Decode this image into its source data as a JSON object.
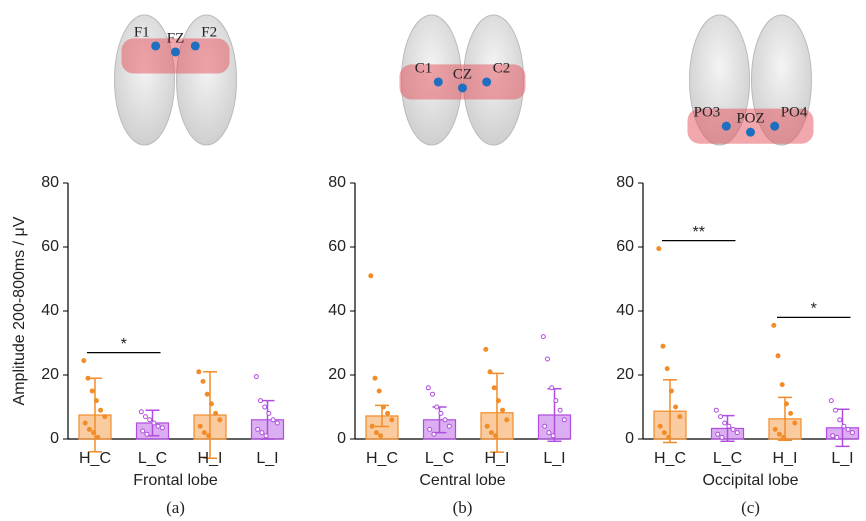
{
  "chart_data": [
    {
      "type": "bar",
      "xlabel": "Frontal lobe",
      "caption": "(a)",
      "ylabel": "Amplitude 200-800ms / μV",
      "categories": [
        "H_C",
        "L_C",
        "H_I",
        "L_I"
      ],
      "values": [
        7.5,
        5,
        7.5,
        6
      ],
      "errors": [
        11.5,
        4,
        13.5,
        6
      ],
      "colors": [
        "#f28c28",
        "#b04ce0",
        "#f28c28",
        "#b04ce0"
      ],
      "points": [
        [
          24.5,
          19,
          15,
          12,
          9,
          7,
          5,
          3,
          2,
          0.5
        ],
        [
          8.5,
          7,
          6,
          5,
          4,
          3.5,
          2.5,
          1.5
        ],
        [
          21,
          18,
          14,
          11,
          8,
          6,
          4,
          2,
          1
        ],
        [
          19.5,
          12,
          10,
          8,
          6,
          5,
          3,
          2,
          1
        ]
      ],
      "electrodes": [
        "F1",
        "FZ",
        "F2"
      ],
      "significance": [
        {
          "label": "*",
          "from": 0,
          "to": 1
        }
      ],
      "ylim": [
        0,
        80
      ],
      "yticks": [
        0,
        20,
        40,
        60,
        80
      ]
    },
    {
      "type": "bar",
      "xlabel": "Central lobe",
      "caption": "(b)",
      "categories": [
        "H_C",
        "L_C",
        "H_I",
        "L_I"
      ],
      "values": [
        7.2,
        6,
        8.2,
        7.5
      ],
      "errors": [
        3.3,
        4,
        12.3,
        8.2
      ],
      "colors": [
        "#f28c28",
        "#b04ce0",
        "#f28c28",
        "#b04ce0"
      ],
      "points": [
        [
          51,
          19,
          15,
          10,
          8,
          6,
          4,
          2,
          1
        ],
        [
          16,
          14,
          10,
          8,
          6,
          4,
          3,
          1.5
        ],
        [
          28,
          21,
          16,
          12,
          9,
          6,
          4,
          2,
          1
        ],
        [
          32,
          25,
          16,
          12,
          9,
          6,
          4,
          2,
          1
        ]
      ],
      "electrodes": [
        "C1",
        "CZ",
        "C2"
      ],
      "significance": [],
      "ylim": [
        0,
        80
      ],
      "yticks": [
        0,
        20,
        40,
        60,
        80
      ]
    },
    {
      "type": "bar",
      "xlabel": "Occipital lobe",
      "caption": "(c)",
      "categories": [
        "H_C",
        "L_C",
        "H_I",
        "L_I"
      ],
      "values": [
        8.7,
        3.3,
        6.3,
        3.5
      ],
      "errors": [
        9.8,
        4,
        6.7,
        5.8
      ],
      "colors": [
        "#f28c28",
        "#b04ce0",
        "#f28c28",
        "#b04ce0"
      ],
      "points": [
        [
          59.5,
          29,
          22,
          15,
          10,
          7,
          4,
          2,
          0.5
        ],
        [
          9,
          7,
          5,
          4,
          3,
          2,
          1.5,
          0.5
        ],
        [
          35.5,
          26,
          17,
          11,
          8,
          5,
          3,
          1.5,
          0.5
        ],
        [
          12,
          9,
          6,
          4,
          3,
          2,
          1,
          0.5
        ]
      ],
      "electrodes": [
        "PO3",
        "POZ",
        "PO4"
      ],
      "significance": [
        {
          "label": "**",
          "from": 0,
          "to": 1
        },
        {
          "label": "*",
          "from": 2,
          "to": 3
        }
      ],
      "ylim": [
        0,
        80
      ],
      "yticks": [
        0,
        20,
        40,
        60,
        80
      ]
    }
  ]
}
